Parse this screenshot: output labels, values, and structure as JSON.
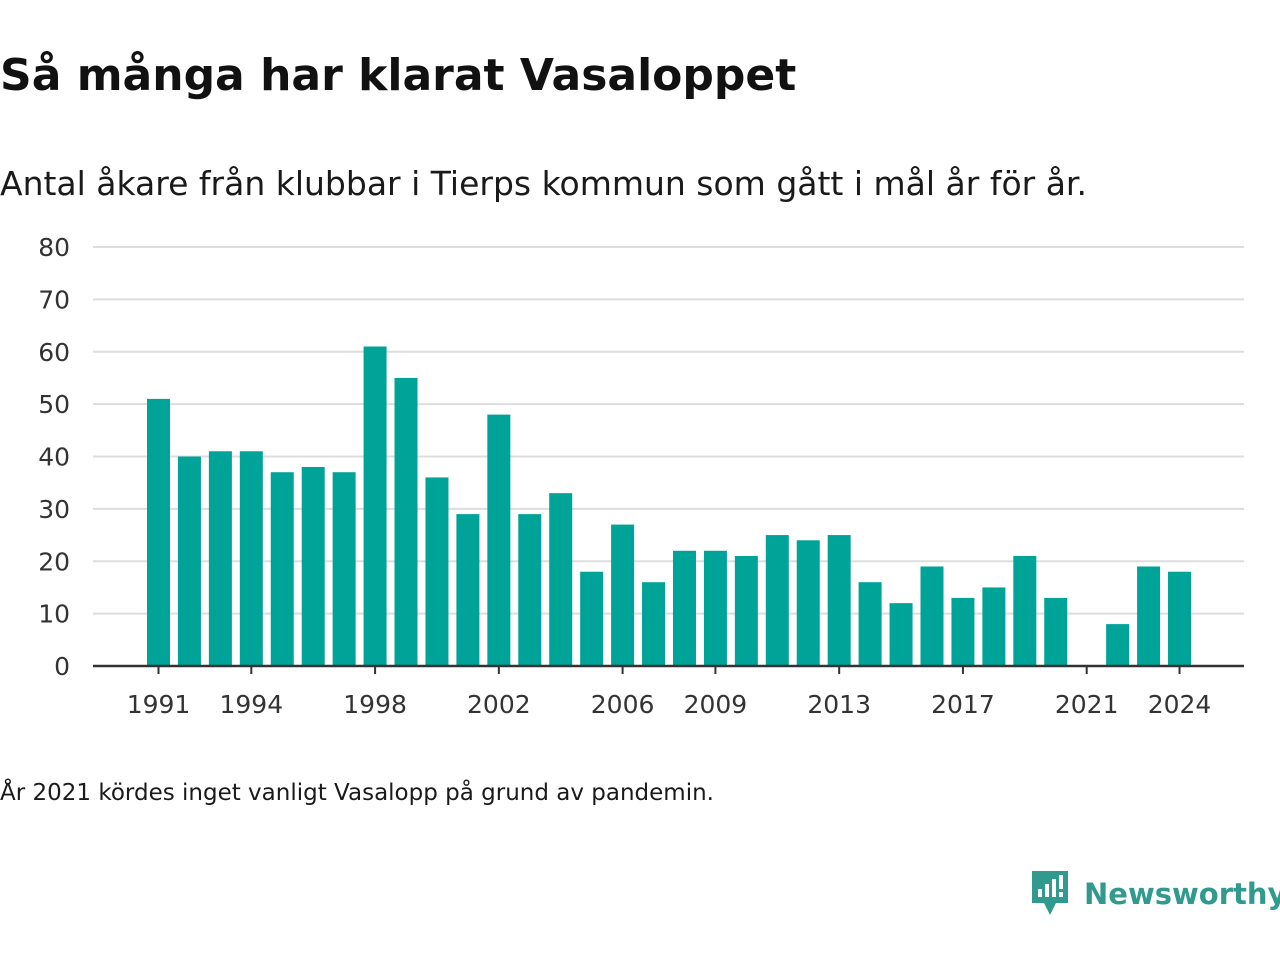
{
  "title": "Så många har klarat Vasaloppet",
  "subtitle": "Antal åkare från klubbar i Tierps kommun som gått i mål år för år.",
  "footnote": "År 2021 kördes inget vanligt Vasalopp på grund av pandemin.",
  "brand": {
    "name": "Newsworthy",
    "icon": "newsworthy-logo-icon",
    "color": "#2f9a8d"
  },
  "colors": {
    "bar": "#00a398",
    "grid": "#dddddd",
    "axis": "#333333",
    "text": "#333333"
  },
  "chart_data": {
    "type": "bar",
    "categories": [
      1991,
      1992,
      1993,
      1994,
      1995,
      1996,
      1997,
      1998,
      1999,
      2000,
      2001,
      2002,
      2003,
      2004,
      2005,
      2006,
      2007,
      2008,
      2009,
      2010,
      2011,
      2012,
      2013,
      2014,
      2015,
      2016,
      2017,
      2018,
      2019,
      2020,
      2021,
      2022,
      2023,
      2024
    ],
    "values": [
      51,
      40,
      41,
      41,
      37,
      38,
      37,
      61,
      55,
      36,
      29,
      48,
      29,
      33,
      18,
      27,
      16,
      22,
      22,
      21,
      25,
      24,
      25,
      16,
      12,
      19,
      13,
      15,
      21,
      13,
      null,
      8,
      19,
      18
    ],
    "x_tick_labels": [
      "1991",
      "1994",
      "1998",
      "2002",
      "2006",
      "2009",
      "2013",
      "2017",
      "2021",
      "2024"
    ],
    "y_ticks": [
      0,
      10,
      20,
      30,
      40,
      50,
      60,
      70,
      80
    ],
    "ylim": [
      0,
      80
    ],
    "grid": true,
    "legend": false,
    "xlabel": "",
    "ylabel": ""
  }
}
